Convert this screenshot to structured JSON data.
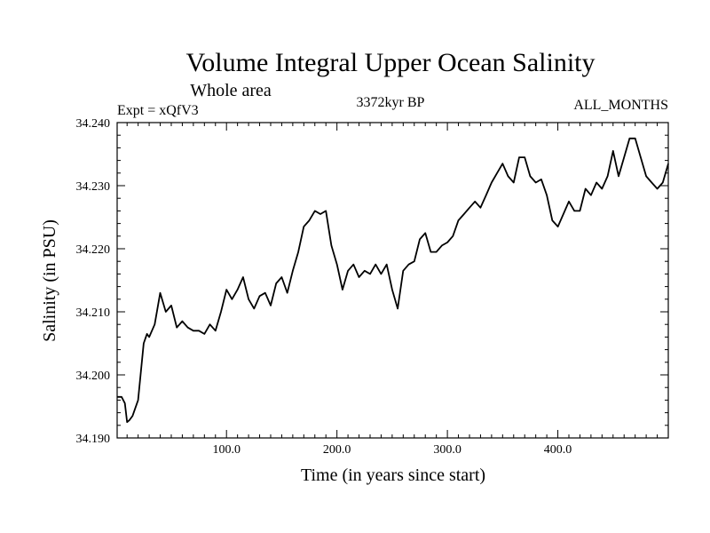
{
  "chart_data": {
    "type": "line",
    "title": "Volume Integral Upper Ocean Salinity",
    "subtitle": "Whole area",
    "annotation_left": "Expt = xQfV3",
    "annotation_center": "3372kyr BP",
    "annotation_right": "ALL_MONTHS",
    "xlabel": "Time (in years since start)",
    "ylabel": "Salinity (in PSU)",
    "xlim": [
      1,
      500
    ],
    "ylim": [
      34.19,
      34.24
    ],
    "xticks": [
      100,
      200,
      300,
      400
    ],
    "xtick_labels": [
      "100.0",
      "200.0",
      "300.0",
      "400.0"
    ],
    "yticks": [
      34.19,
      34.2,
      34.21,
      34.22,
      34.23,
      34.24
    ],
    "ytick_labels": [
      "34.190",
      "34.200",
      "34.210",
      "34.220",
      "34.230",
      "34.240"
    ],
    "grid": false,
    "series": [
      {
        "name": "salinity",
        "x": [
          1,
          5,
          8,
          10,
          12,
          15,
          20,
          25,
          28,
          30,
          35,
          40,
          45,
          50,
          55,
          60,
          65,
          70,
          75,
          80,
          85,
          90,
          95,
          100,
          105,
          110,
          115,
          120,
          125,
          130,
          135,
          140,
          145,
          150,
          155,
          160,
          165,
          170,
          175,
          180,
          185,
          190,
          195,
          200,
          205,
          210,
          215,
          220,
          225,
          230,
          235,
          240,
          245,
          250,
          255,
          260,
          265,
          270,
          275,
          280,
          285,
          290,
          295,
          300,
          305,
          310,
          315,
          320,
          325,
          330,
          335,
          340,
          345,
          350,
          355,
          360,
          365,
          370,
          375,
          380,
          385,
          390,
          395,
          400,
          405,
          410,
          415,
          420,
          425,
          430,
          435,
          440,
          445,
          450,
          455,
          460,
          465,
          470,
          475,
          480,
          485,
          490,
          495,
          500
        ],
        "values": [
          34.1965,
          34.1965,
          34.1955,
          34.1925,
          34.1928,
          34.1935,
          34.196,
          34.205,
          34.2065,
          34.206,
          34.208,
          34.213,
          34.21,
          34.211,
          34.2075,
          34.2085,
          34.2075,
          34.207,
          34.207,
          34.2065,
          34.208,
          34.207,
          34.21,
          34.2135,
          34.212,
          34.2135,
          34.2155,
          34.212,
          34.2105,
          34.2125,
          34.213,
          34.211,
          34.2145,
          34.2155,
          34.213,
          34.2165,
          34.2195,
          34.2235,
          34.2245,
          34.226,
          34.2255,
          34.226,
          34.2205,
          34.2175,
          34.2135,
          34.2165,
          34.2175,
          34.2155,
          34.2165,
          34.216,
          34.2175,
          34.216,
          34.2175,
          34.2135,
          34.2105,
          34.2165,
          34.2175,
          34.218,
          34.2215,
          34.2225,
          34.2195,
          34.2195,
          34.2205,
          34.221,
          34.222,
          34.2245,
          34.2255,
          34.2265,
          34.2275,
          34.2265,
          34.2285,
          34.2305,
          34.232,
          34.2335,
          34.2315,
          34.2305,
          34.2345,
          34.2345,
          34.2315,
          34.2305,
          34.231,
          34.2285,
          34.2245,
          34.2235,
          34.2255,
          34.2275,
          34.226,
          34.226,
          34.2295,
          34.2285,
          34.2305,
          34.2295,
          34.2315,
          34.2355,
          34.2315,
          34.2345,
          34.2375,
          34.2375,
          34.2345,
          34.2315,
          34.2305,
          34.2295,
          34.2305,
          34.2335
        ]
      }
    ]
  }
}
